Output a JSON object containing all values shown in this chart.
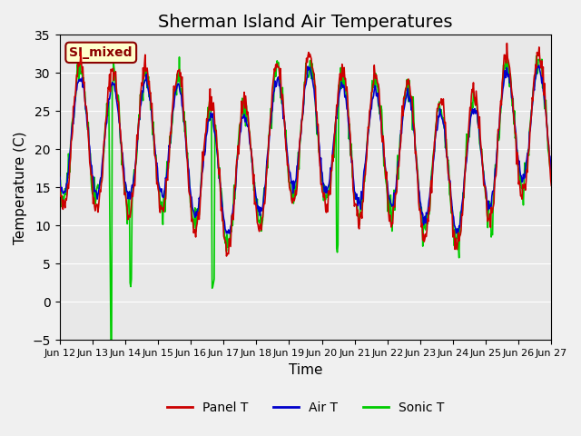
{
  "title": "Sherman Island Air Temperatures",
  "xlabel": "Time",
  "ylabel": "Temperature (C)",
  "ylim": [
    -5,
    35
  ],
  "yticks": [
    -5,
    0,
    5,
    10,
    15,
    20,
    25,
    30,
    35
  ],
  "xtick_labels": [
    "Jun 12",
    "Jun 13",
    "Jun 14",
    "Jun 15",
    "Jun 16",
    "Jun 17",
    "Jun 18",
    "Jun 19",
    "Jun 20",
    "Jun 21",
    "Jun 22",
    "Jun 23",
    "Jun 24",
    "Jun 25",
    "Jun 26",
    "Jun 27"
  ],
  "panel_t_color": "#cc0000",
  "air_t_color": "#0000cc",
  "sonic_t_color": "#00cc00",
  "bg_color": "#e8e8e8",
  "fig_bg_color": "#f0f0f0",
  "annotation_text": "SI_mixed",
  "annotation_bg": "#ffffcc",
  "annotation_fg": "#8b0000",
  "legend_labels": [
    "Panel T",
    "Air T",
    "Sonic T"
  ],
  "title_fontsize": 14,
  "axis_label_fontsize": 11,
  "tick_fontsize": 8
}
